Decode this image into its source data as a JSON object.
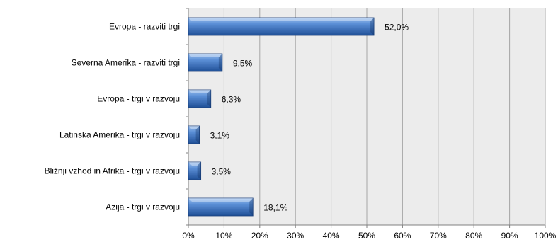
{
  "chart_data": {
    "type": "bar",
    "orientation": "horizontal",
    "categories": [
      "Evropa - razviti trgi",
      "Severna Amerika - razviti trgi",
      "Evropa - trgi v razvoju",
      "Latinska Amerika - trgi v razvoju",
      "Bližnji vzhod in Afrika - trgi v razvoju",
      "Azija - trgi v razvoju"
    ],
    "values": [
      52.0,
      9.5,
      6.3,
      3.1,
      3.5,
      18.1
    ],
    "data_labels": [
      "52,0%",
      "9,5%",
      "6,3%",
      "3,1%",
      "3,5%",
      "18,1%"
    ],
    "xlim": [
      0,
      100
    ],
    "x_ticks": [
      0,
      10,
      20,
      30,
      40,
      50,
      60,
      70,
      80,
      90,
      100
    ],
    "x_tick_labels": [
      "0%",
      "10%",
      "20%",
      "30%",
      "40%",
      "50%",
      "60%",
      "70%",
      "80%",
      "90%",
      "100%"
    ],
    "title": "",
    "xlabel": "",
    "ylabel": "",
    "grid": true,
    "legend": "none",
    "colors": {
      "bar_light": "#7fa8e0",
      "bar_mid": "#4a7fc8",
      "bar_dark": "#1f4f96",
      "plot_background": "#ececec",
      "gridline": "#a6a6a6"
    }
  }
}
